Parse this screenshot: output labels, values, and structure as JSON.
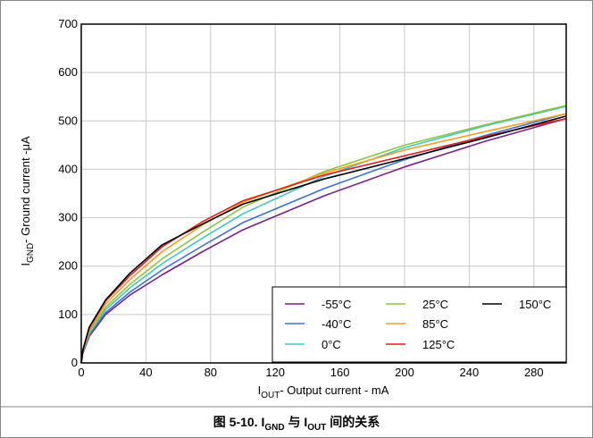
{
  "chart_data": {
    "type": "line",
    "title": "",
    "xlabel": {
      "main": "I",
      "sub": "OUT",
      "rest": "- Output current - mA"
    },
    "ylabel": {
      "main": "I",
      "sub": "GND",
      "rest": "- Ground current -μA"
    },
    "xlim": [
      0,
      300
    ],
    "ylim": [
      0,
      700
    ],
    "xticks": [
      0,
      40,
      80,
      120,
      160,
      200,
      240,
      280
    ],
    "yticks": [
      0,
      100,
      200,
      300,
      400,
      500,
      600,
      700
    ],
    "grid": true,
    "legend_position": "bottom-right",
    "series": [
      {
        "name": "-55°C",
        "color": "#7a1f8c",
        "x": [
          0,
          1,
          5,
          15,
          30,
          50,
          75,
          100,
          150,
          200,
          250,
          300
        ],
        "y": [
          0,
          20,
          55,
          100,
          140,
          182,
          230,
          275,
          345,
          405,
          458,
          505
        ]
      },
      {
        "name": "-40°C",
        "color": "#3b6fe0",
        "x": [
          0,
          1,
          5,
          15,
          30,
          50,
          75,
          100,
          150,
          200,
          250,
          300
        ],
        "y": [
          0,
          22,
          58,
          104,
          146,
          192,
          242,
          290,
          360,
          420,
          470,
          515
        ]
      },
      {
        "name": "0°C",
        "color": "#3fc6c6",
        "x": [
          0,
          1,
          5,
          15,
          30,
          50,
          75,
          100,
          150,
          200,
          250,
          300
        ],
        "y": [
          0,
          23,
          61,
          110,
          155,
          205,
          258,
          308,
          385,
          445,
          490,
          530
        ]
      },
      {
        "name": "25°C",
        "color": "#8cc63f",
        "x": [
          0,
          1,
          5,
          15,
          30,
          50,
          75,
          100,
          150,
          200,
          250,
          300
        ],
        "y": [
          0,
          24,
          64,
          115,
          162,
          215,
          270,
          322,
          395,
          450,
          492,
          532
        ]
      },
      {
        "name": "85°C",
        "color": "#f0a020",
        "x": [
          0,
          1,
          5,
          15,
          30,
          50,
          75,
          100,
          150,
          200,
          250,
          300
        ],
        "y": [
          0,
          25,
          68,
          122,
          172,
          230,
          285,
          332,
          392,
          440,
          478,
          515
        ]
      },
      {
        "name": "125°C",
        "color": "#e0201f",
        "x": [
          0,
          1,
          5,
          15,
          30,
          50,
          75,
          100,
          150,
          200,
          250,
          300
        ],
        "y": [
          0,
          26,
          72,
          128,
          180,
          240,
          292,
          335,
          388,
          428,
          468,
          505
        ]
      },
      {
        "name": "150°C",
        "color": "#000000",
        "x": [
          0,
          1,
          5,
          15,
          30,
          50,
          75,
          100,
          150,
          200,
          250,
          300
        ],
        "y": [
          0,
          27,
          74,
          130,
          185,
          244,
          287,
          328,
          380,
          422,
          465,
          510
        ]
      }
    ]
  },
  "caption": {
    "prefix": "图 5-10. I",
    "sub1": "GND",
    "mid": " 与 I",
    "sub2": "OUT",
    "suffix": " 间的关系"
  }
}
